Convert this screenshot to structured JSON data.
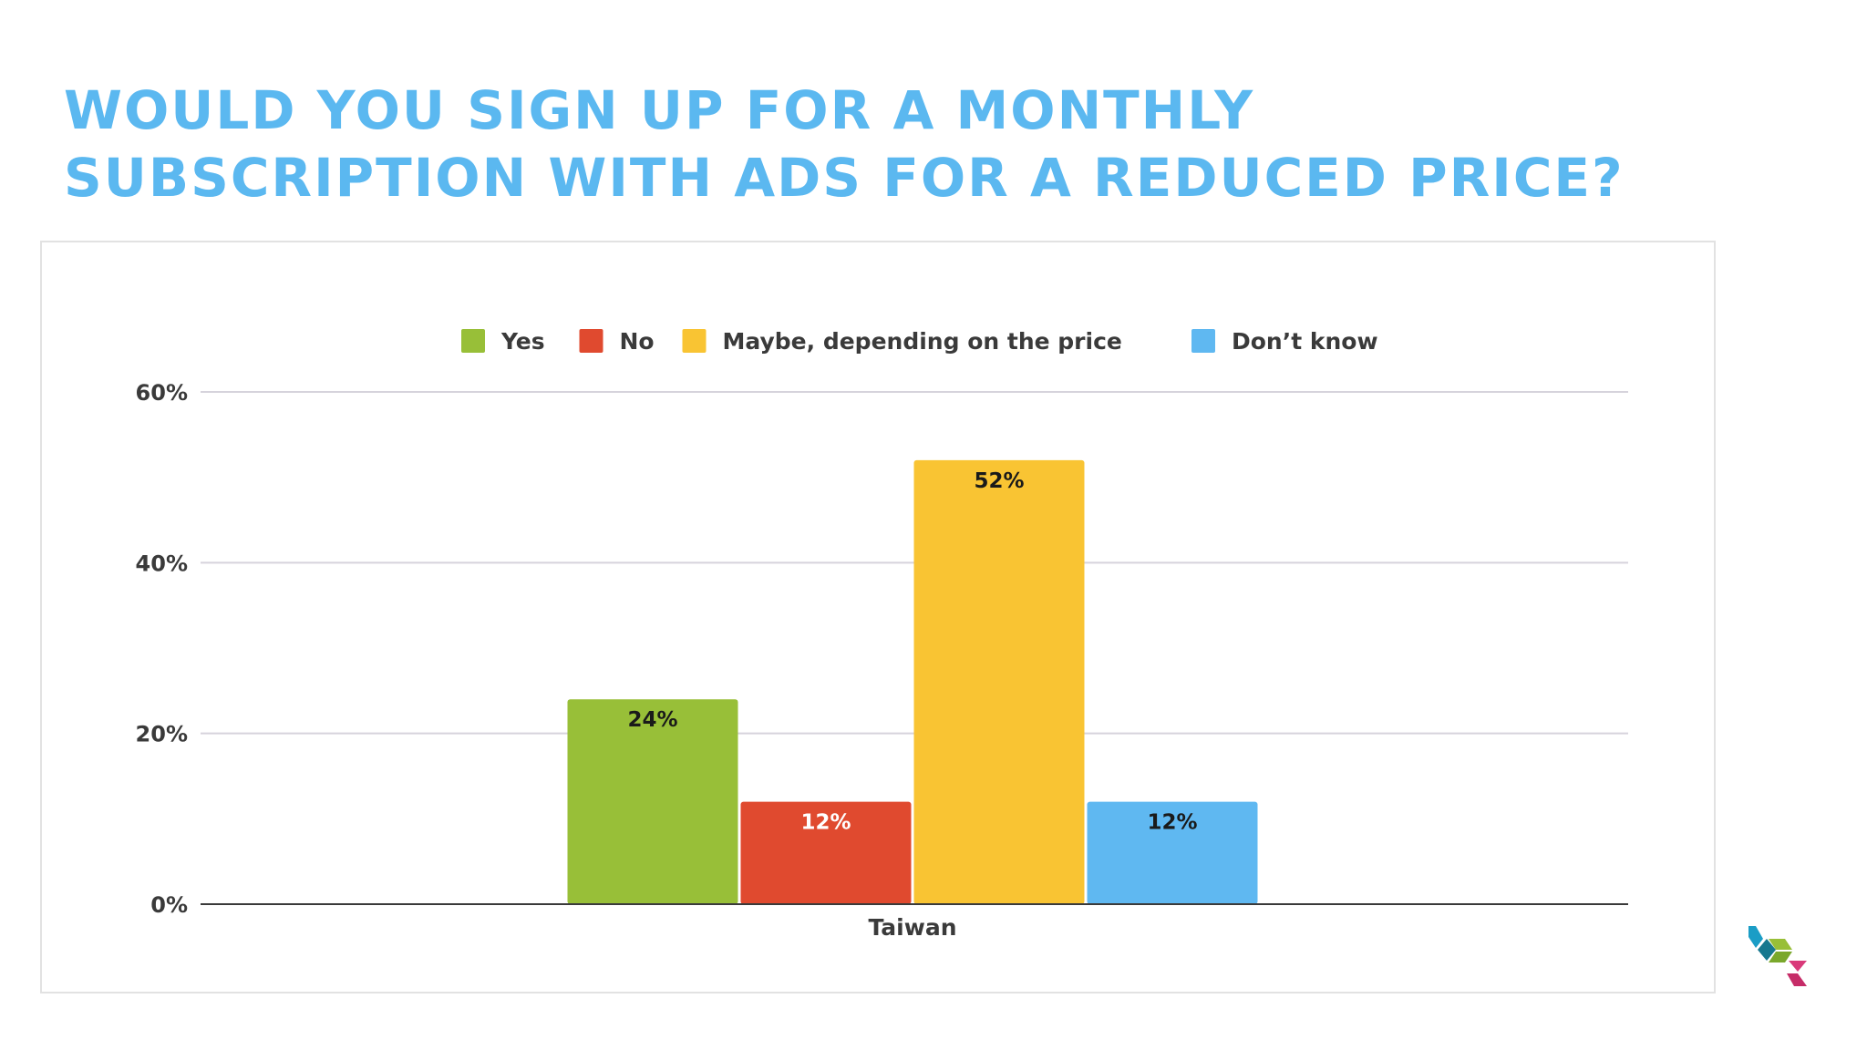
{
  "page": {
    "title_lines": [
      "WOULD YOU SIGN UP FOR A MONTHLY",
      "SUBSCRIPTION WITH ADS FOR A REDUCED PRICE?"
    ],
    "title_color": "#5bb8f0",
    "logo_icon": "cube-logo-icon"
  },
  "chart_data": {
    "type": "bar",
    "title": "",
    "xlabel": "",
    "ylabel": "",
    "categories": [
      "Taiwan"
    ],
    "ylim": [
      0,
      60
    ],
    "yticks": [
      "0%",
      "20%",
      "40%",
      "60%"
    ],
    "ytick_values": [
      0,
      20,
      40,
      60
    ],
    "grid": true,
    "legend_position": "top",
    "series": [
      {
        "name": "Yes",
        "values": [
          24
        ],
        "label": "24%",
        "color": "#98bf38",
        "label_color": "#1a1a1a"
      },
      {
        "name": "No",
        "values": [
          12
        ],
        "label": "12%",
        "color": "#e04a2f",
        "label_color": "#ffffff"
      },
      {
        "name": "Maybe, depending on the price",
        "values": [
          52
        ],
        "label": "52%",
        "color": "#f9c433",
        "label_color": "#1a1a1a"
      },
      {
        "name": "Don’t know",
        "values": [
          12
        ],
        "label": "12%",
        "color": "#5fb8f1",
        "label_color": "#1a1a1a"
      }
    ]
  }
}
